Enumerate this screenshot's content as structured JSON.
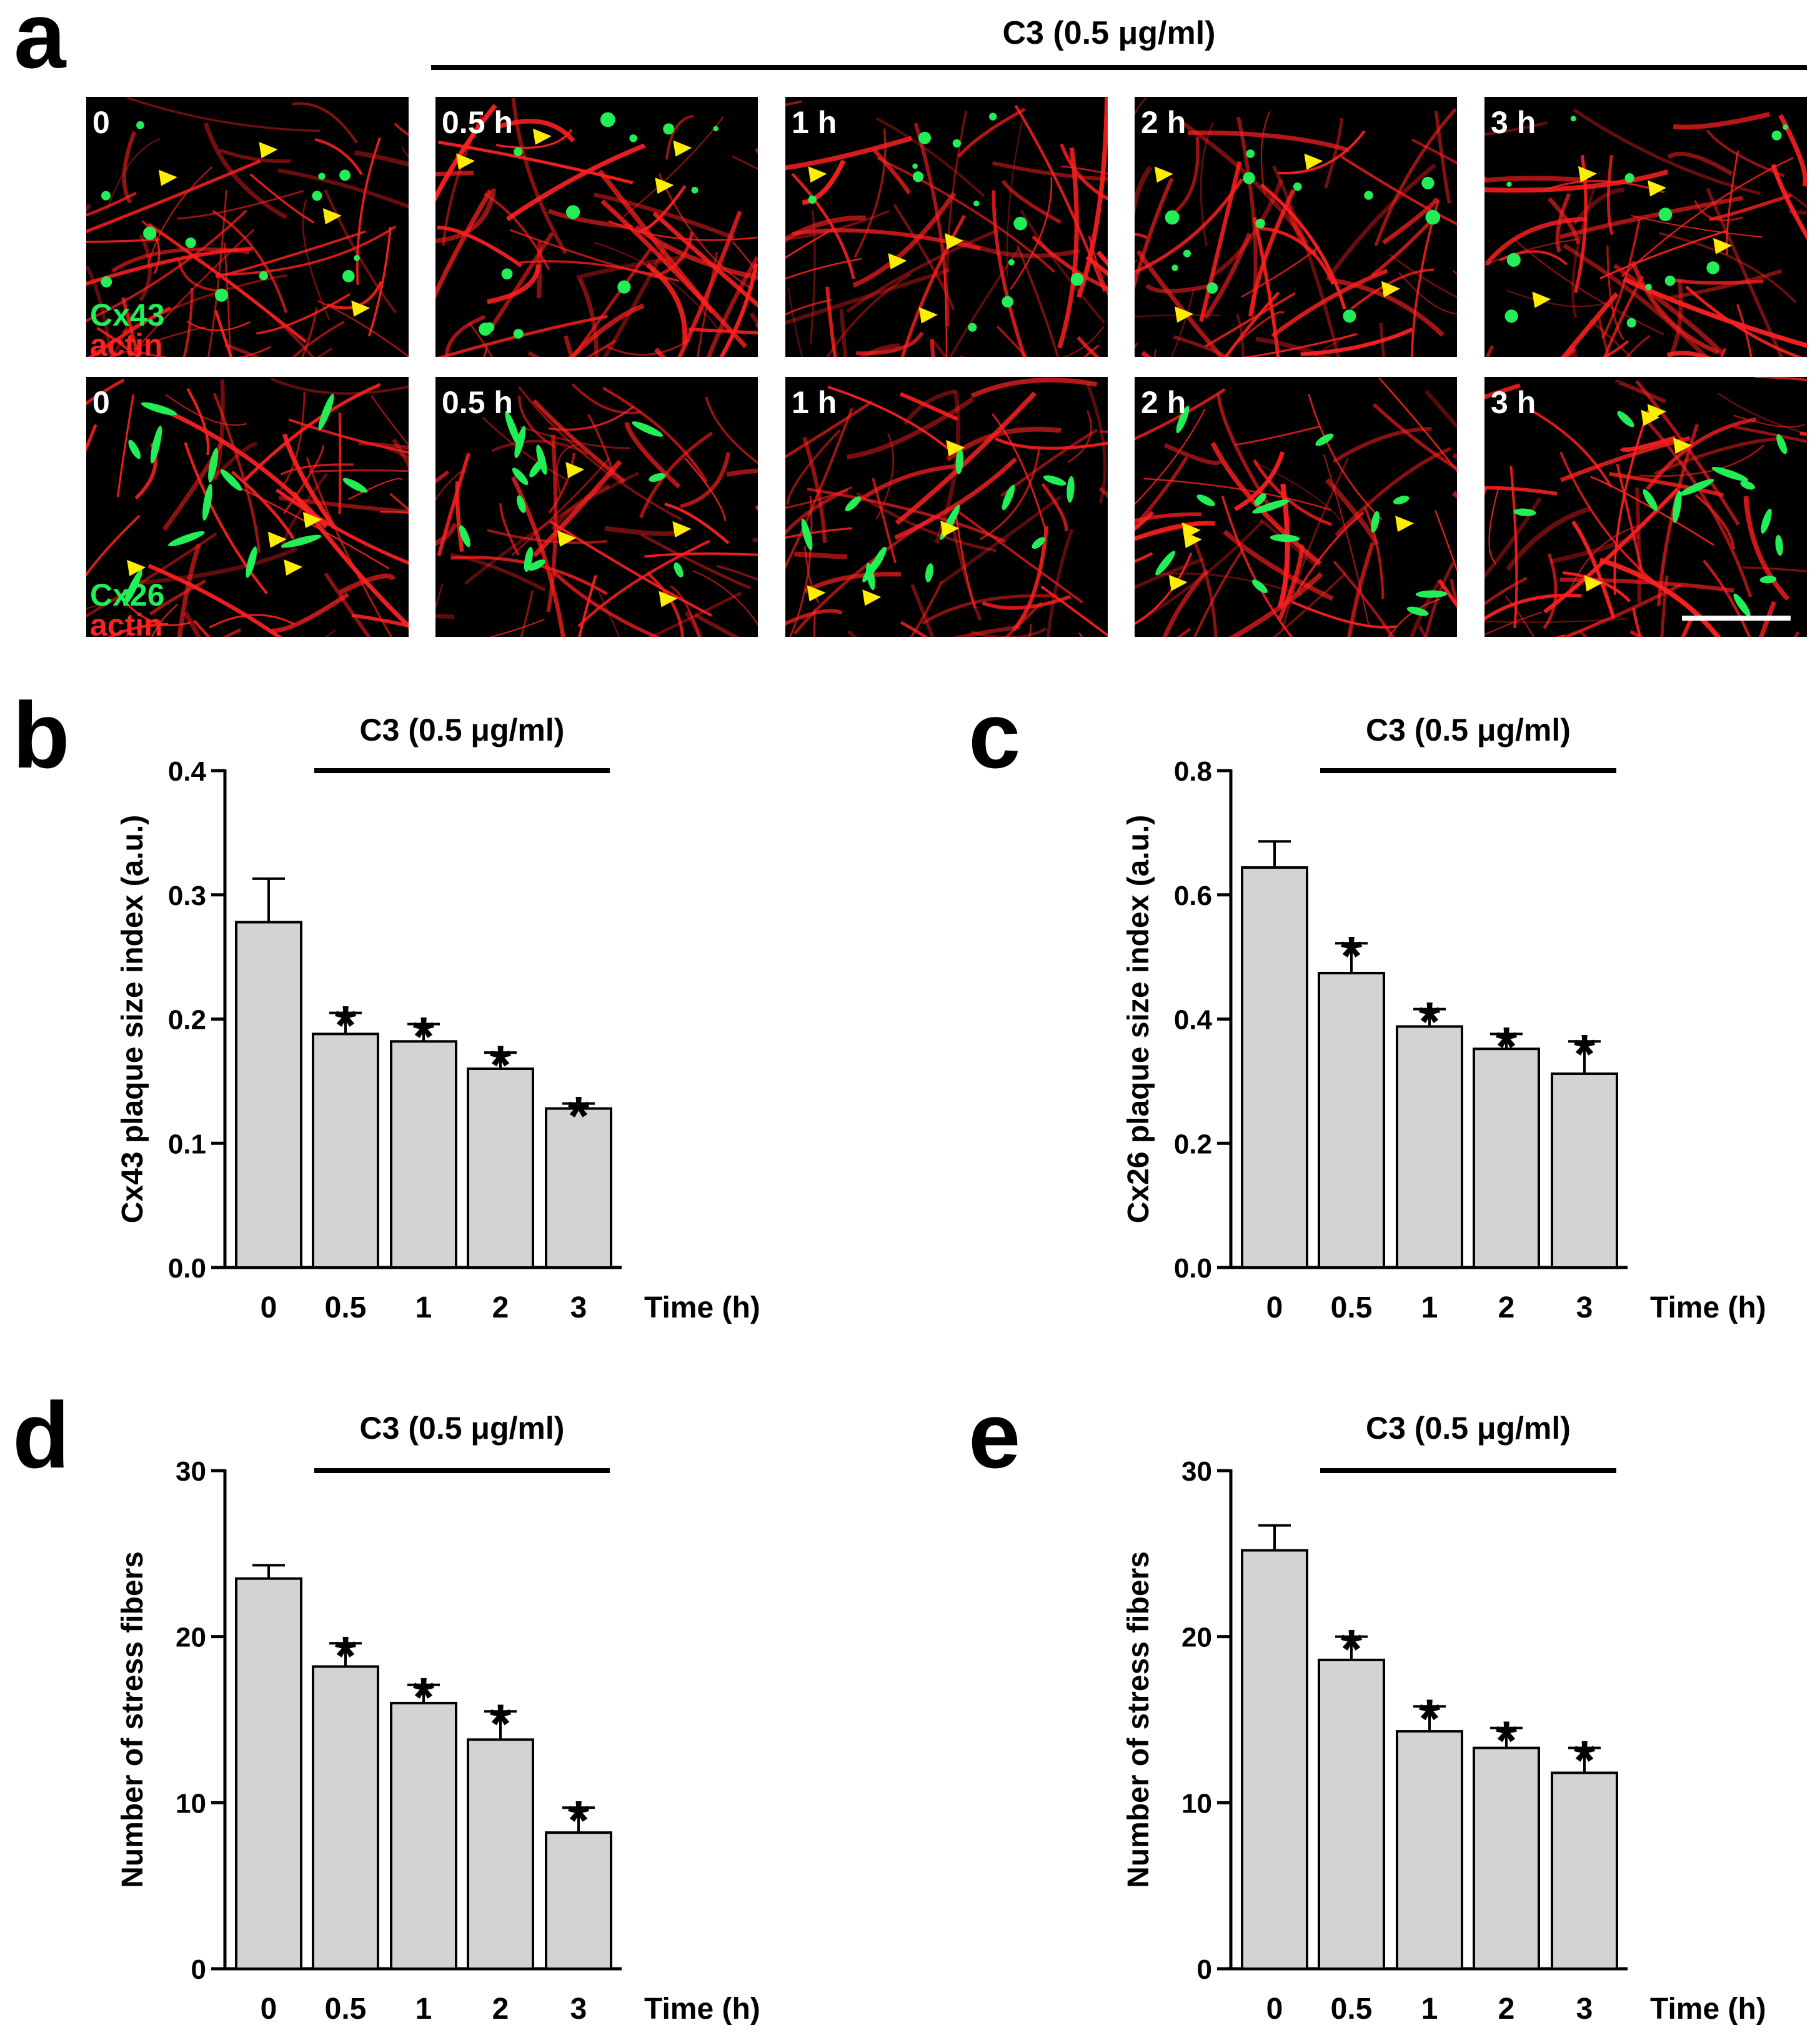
{
  "panel_a": {
    "letter": "a",
    "treatment_label": "C3 (0.5 μg/ml)",
    "time_labels": [
      "0",
      "0.5 h",
      "1 h",
      "2 h",
      "3 h"
    ],
    "rows": [
      {
        "protein": "Cx43",
        "stain": "actin",
        "protein_color": "#22ee55",
        "stain_color": "#ff2020"
      },
      {
        "protein": "Cx26",
        "stain": "actin",
        "protein_color": "#22ee55",
        "stain_color": "#ff2020"
      }
    ],
    "arrowhead_color": "#ffee00"
  },
  "chart_data": [
    {
      "panel": "b",
      "type": "bar",
      "treatment_label": "C3 (0.5 μg/ml)",
      "categories": [
        "0",
        "0.5",
        "1",
        "2",
        "3"
      ],
      "values": [
        0.278,
        0.188,
        0.182,
        0.16,
        0.128
      ],
      "errors": [
        0.035,
        0.017,
        0.014,
        0.013,
        0.004
      ],
      "significant": [
        false,
        true,
        true,
        true,
        true
      ],
      "marker": "*",
      "xlabel": "Time (h)",
      "ylabel": "Cx43 plaque size index (a.u.)",
      "ylim": [
        0,
        0.4
      ],
      "yticks": [
        "0.0",
        "0.1",
        "0.2",
        "0.3",
        "0.4"
      ]
    },
    {
      "panel": "c",
      "type": "bar",
      "treatment_label": "C3 (0.5 μg/ml)",
      "categories": [
        "0",
        "0.5",
        "1",
        "2",
        "3"
      ],
      "values": [
        0.644,
        0.474,
        0.388,
        0.352,
        0.312
      ],
      "errors": [
        0.042,
        0.048,
        0.028,
        0.024,
        0.052
      ],
      "significant": [
        false,
        true,
        true,
        true,
        true
      ],
      "marker": "*",
      "xlabel": "Time (h)",
      "ylabel": "Cx26 plaque size index (a.u.)",
      "ylim": [
        0,
        0.8
      ],
      "yticks": [
        "0.0",
        "0.2",
        "0.4",
        "0.6",
        "0.8"
      ]
    },
    {
      "panel": "d",
      "type": "bar",
      "treatment_label": "C3 (0.5 μg/ml)",
      "categories": [
        "0",
        "0.5",
        "1",
        "2",
        "3"
      ],
      "values": [
        23.5,
        18.2,
        16.0,
        13.8,
        8.2
      ],
      "errors": [
        0.8,
        1.4,
        1.1,
        1.7,
        1.5
      ],
      "significant": [
        false,
        true,
        true,
        true,
        true
      ],
      "marker": "*",
      "xlabel": "Time (h)",
      "ylabel": "Number of stress fibers",
      "ylim": [
        0,
        30
      ],
      "yticks": [
        "0",
        "10",
        "20",
        "30"
      ]
    },
    {
      "panel": "e",
      "type": "bar",
      "treatment_label": "C3 (0.5 μg/ml)",
      "categories": [
        "0",
        "0.5",
        "1",
        "2",
        "3"
      ],
      "values": [
        25.2,
        18.6,
        14.3,
        13.3,
        11.8
      ],
      "errors": [
        1.5,
        1.4,
        1.5,
        1.2,
        1.5
      ],
      "significant": [
        false,
        true,
        true,
        true,
        true
      ],
      "marker": "*",
      "xlabel": "Time (h)",
      "ylabel": "Number of stress fibers",
      "ylim": [
        0,
        30
      ],
      "yticks": [
        "0",
        "10",
        "20",
        "30"
      ]
    }
  ]
}
